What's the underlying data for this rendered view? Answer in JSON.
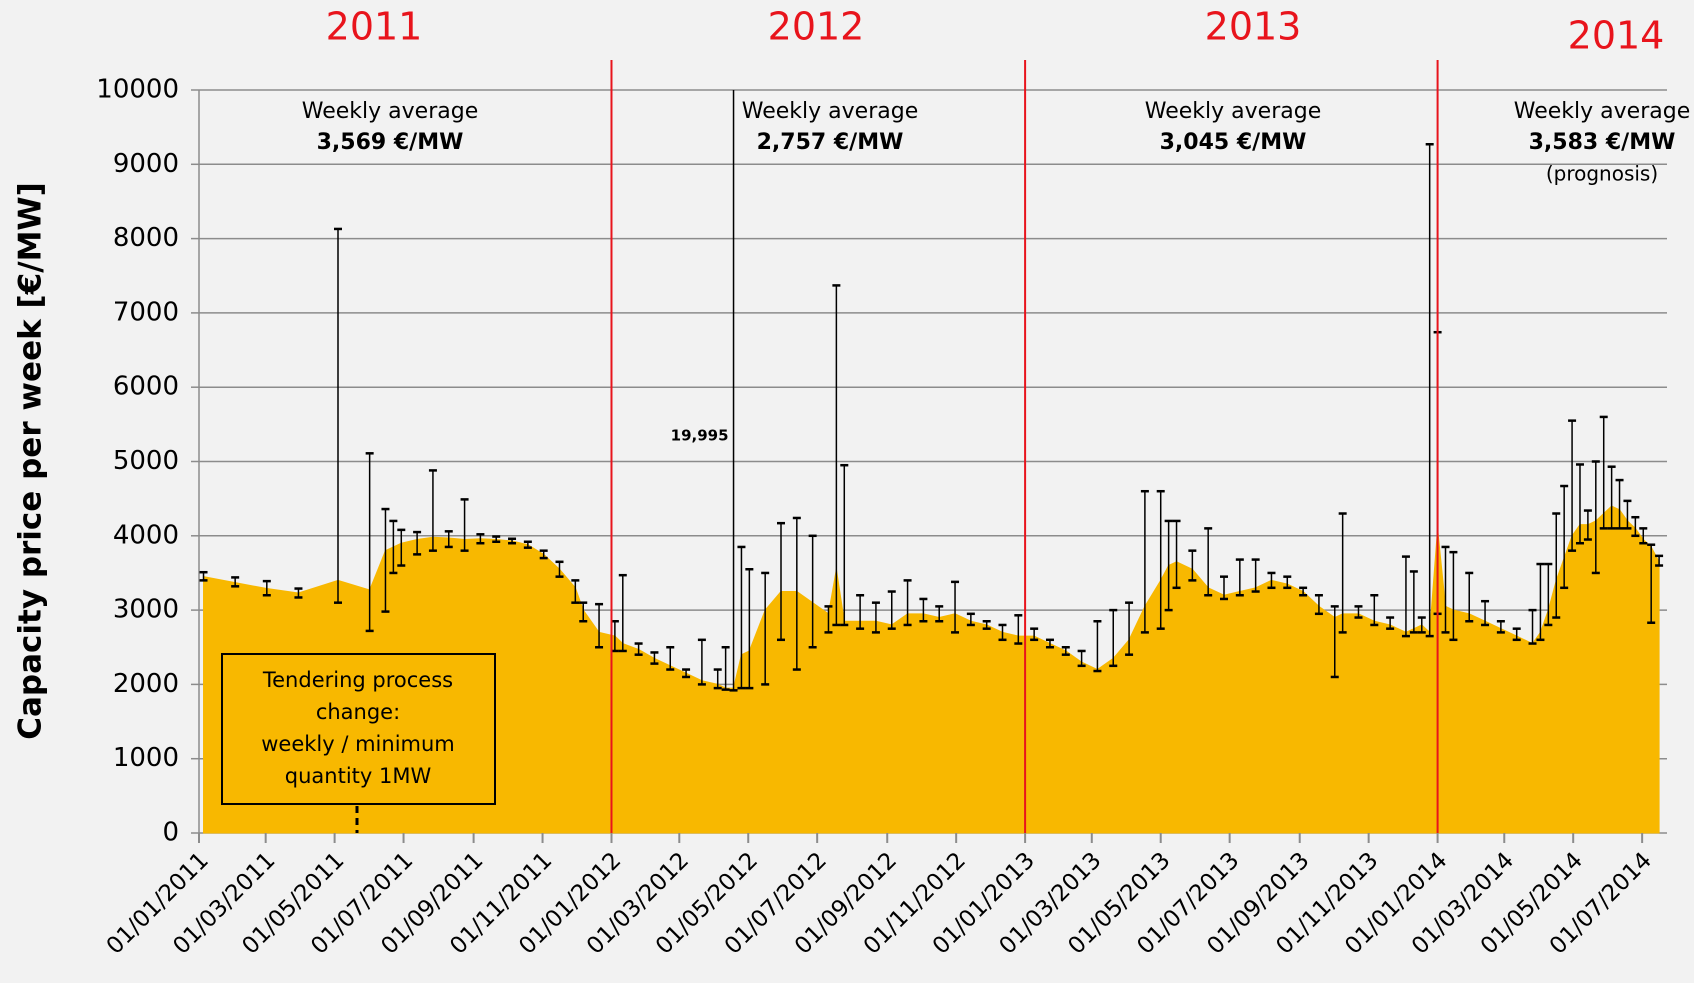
{
  "chart_data": {
    "type": "area",
    "y_label": "Capacity price per week [€/MW]",
    "color": "#f8b800",
    "error_color": "#000000",
    "year_line_color": "#e8141c",
    "grid": true,
    "years": [
      "2011",
      "2012",
      "2013",
      "2014"
    ],
    "averages": [
      {
        "label": "Weekly average",
        "value": "3,569 €/MW"
      },
      {
        "label": "Weekly average",
        "value": "2,757 €/MW"
      },
      {
        "label": "Weekly average",
        "value": "3,045 €/MW"
      },
      {
        "label": "Weekly average",
        "value": "3,583 €/MW",
        "note": "(prognosis)"
      }
    ],
    "spike_label": "19,995",
    "tender_note": [
      "Tendering process",
      "change:",
      "weekly / minimum",
      "quantity 1MW"
    ],
    "ylim": [
      0,
      10000
    ],
    "yticks": [
      0,
      1000,
      2000,
      3000,
      4000,
      5000,
      6000,
      7000,
      8000,
      9000,
      10000
    ],
    "xlim": [
      "01/01/2011",
      "23/07/2014"
    ],
    "xticks": [
      "01/01/2011",
      "01/03/2011",
      "01/05/2011",
      "01/07/2011",
      "01/09/2011",
      "01/11/2011",
      "01/01/2012",
      "01/03/2012",
      "01/05/2012",
      "01/07/2012",
      "01/09/2012",
      "01/11/2012",
      "01/01/2013",
      "01/03/2013",
      "01/05/2013",
      "01/07/2013",
      "01/09/2013",
      "01/11/2013",
      "01/01/2014",
      "01/03/2014",
      "01/05/2014",
      "01/07/2014"
    ],
    "x": [
      "05/01/2011",
      "02/02/2011",
      "02/03/2011",
      "30/03/2011",
      "04/05/2011",
      "01/06/2011",
      "15/06/2011",
      "22/06/2011",
      "29/06/2011",
      "13/07/2011",
      "27/07/2011",
      "10/08/2011",
      "24/08/2011",
      "07/09/2011",
      "21/09/2011",
      "05/10/2011",
      "19/10/2011",
      "02/11/2011",
      "16/11/2011",
      "30/11/2011",
      "07/12/2011",
      "21/12/2011",
      "04/01/2012",
      "11/01/2012",
      "25/01/2012",
      "08/02/2012",
      "22/02/2012",
      "07/03/2012",
      "21/03/2012",
      "04/04/2012",
      "11/04/2012",
      "18/04/2012",
      "25/04/2012",
      "02/05/2012",
      "16/05/2012",
      "30/05/2012",
      "13/06/2012",
      "27/06/2012",
      "11/07/2012",
      "18/07/2012",
      "25/07/2012",
      "08/08/2012",
      "22/08/2012",
      "05/09/2012",
      "19/09/2012",
      "03/10/2012",
      "17/10/2012",
      "31/10/2012",
      "14/11/2012",
      "28/11/2012",
      "12/12/2012",
      "26/12/2012",
      "09/01/2013",
      "23/01/2013",
      "06/02/2013",
      "20/02/2013",
      "06/03/2013",
      "20/03/2013",
      "03/04/2013",
      "17/04/2013",
      "01/05/2013",
      "08/05/2013",
      "15/05/2013",
      "29/05/2013",
      "12/06/2013",
      "26/06/2013",
      "10/07/2013",
      "24/07/2013",
      "07/08/2013",
      "21/08/2013",
      "04/09/2013",
      "18/09/2013",
      "02/10/2013",
      "09/10/2013",
      "23/10/2013",
      "06/11/2013",
      "20/11/2013",
      "04/12/2013",
      "11/12/2013",
      "18/12/2013",
      "25/12/2013",
      "01/01/2014",
      "08/01/2014",
      "15/01/2014",
      "29/01/2014",
      "12/02/2014",
      "26/02/2014",
      "12/03/2014",
      "26/03/2014",
      "02/04/2014",
      "09/04/2014",
      "16/04/2014",
      "23/04/2014",
      "30/04/2014",
      "07/05/2014",
      "14/05/2014",
      "21/05/2014",
      "28/05/2014",
      "04/06/2014",
      "11/06/2014",
      "18/06/2014",
      "25/06/2014",
      "02/07/2014",
      "09/07/2014",
      "16/07/2014"
    ],
    "values": [
      3450,
      3370,
      3290,
      3230,
      3400,
      3270,
      3800,
      3850,
      3900,
      3950,
      3980,
      3970,
      3950,
      3960,
      3950,
      3930,
      3880,
      3750,
      3550,
      3300,
      3000,
      2700,
      2650,
      2550,
      2470,
      2350,
      2250,
      2150,
      2050,
      2000,
      1950,
      1950,
      2400,
      2450,
      3000,
      3250,
      3250,
      3100,
      2950,
      3550,
      2850,
      2850,
      2850,
      2800,
      2950,
      2950,
      2900,
      2950,
      2850,
      2800,
      2700,
      2650,
      2650,
      2550,
      2450,
      2300,
      2200,
      2350,
      2600,
      3050,
      3400,
      3600,
      3650,
      3550,
      3300,
      3200,
      3250,
      3300,
      3400,
      3350,
      3250,
      3050,
      2900,
      2950,
      2950,
      2850,
      2800,
      2700,
      2750,
      2800,
      2700,
      4100,
      3050,
      3000,
      2950,
      2850,
      2750,
      2650,
      2550,
      2700,
      3000,
      3400,
      3700,
      4000,
      4150,
      4150,
      4200,
      4300,
      4400,
      4350,
      4200,
      4100,
      3950,
      3850,
      3650
    ],
    "low": [
      3400,
      3320,
      3200,
      3170,
      3100,
      2720,
      2980,
      3500,
      3600,
      3750,
      3800,
      3850,
      3800,
      3900,
      3920,
      3900,
      3840,
      3700,
      3450,
      3100,
      2850,
      2500,
      2450,
      2450,
      2400,
      2280,
      2200,
      2100,
      2000,
      1950,
      1930,
      1920,
      1950,
      1950,
      2000,
      2600,
      2200,
      2500,
      2700,
      2800,
      2800,
      2750,
      2700,
      2750,
      2800,
      2850,
      2850,
      2700,
      2800,
      2750,
      2600,
      2550,
      2600,
      2500,
      2400,
      2250,
      2180,
      2250,
      2400,
      2700,
      2750,
      3000,
      3300,
      3400,
      3200,
      3150,
      3200,
      3250,
      3300,
      3300,
      3200,
      2950,
      2100,
      2700,
      2900,
      2800,
      2750,
      2650,
      2700,
      2700,
      2650,
      2950,
      2700,
      2600,
      2850,
      2800,
      2700,
      2600,
      2550,
      2600,
      2800,
      2900,
      3300,
      3800,
      3900,
      3950,
      3500,
      4100,
      4100,
      4100,
      4100,
      4000,
      3900,
      2830,
      3600
    ],
    "high": [
      3510,
      3440,
      3390,
      3290,
      8130,
      5110,
      4360,
      4200,
      4080,
      4050,
      4880,
      4060,
      4490,
      4020,
      3990,
      3960,
      3920,
      3800,
      3650,
      3400,
      3100,
      3080,
      2850,
      3470,
      2550,
      2430,
      2500,
      2200,
      2600,
      2200,
      2500,
      19995,
      3850,
      3550,
      3500,
      4170,
      4240,
      4000,
      3050,
      7370,
      4950,
      3200,
      3100,
      3250,
      3400,
      3150,
      3050,
      3380,
      2950,
      2850,
      2800,
      2930,
      2750,
      2600,
      2500,
      2450,
      2850,
      3000,
      3100,
      4600,
      4600,
      4200,
      4200,
      3800,
      4100,
      3450,
      3680,
      3680,
      3500,
      3450,
      3300,
      3200,
      3050,
      4300,
      3050,
      3200,
      2900,
      3720,
      3520,
      2900,
      9270,
      6740,
      3850,
      3780,
      3500,
      3120,
      2850,
      2750,
      3000,
      3620,
      3620,
      4300,
      4670,
      5550,
      4960,
      4340,
      5000,
      5600,
      4930,
      4750,
      4470,
      4250,
      4100,
      3880,
      3730
    ]
  }
}
